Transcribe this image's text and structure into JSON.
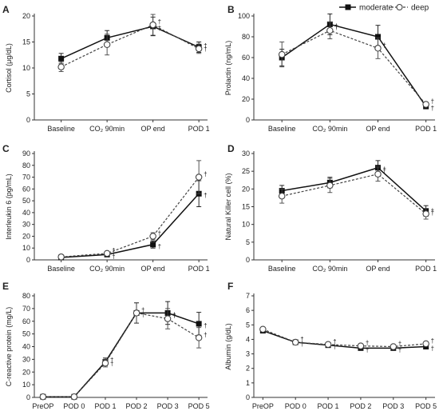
{
  "legend": {
    "moderate": "moderate",
    "deep": "deep",
    "position": "top-right"
  },
  "colors": {
    "moderate": "#111111",
    "deep": "#444444",
    "deep_fill": "#ffffff"
  },
  "chart_data": [
    {
      "id": "A",
      "panel_label": "A",
      "type": "line",
      "categories": [
        "Baseline",
        "CO₂ 90min",
        "OP end",
        "POD 1"
      ],
      "ylabel": "Cortisol (μg/dL)",
      "ylim": [
        0,
        20
      ],
      "yticks": [
        0,
        5,
        10,
        15,
        20
      ],
      "series": [
        {
          "name": "moderate",
          "values": [
            11.8,
            15.8,
            18.0,
            14.0
          ],
          "err": [
            1.0,
            1.4,
            1.8,
            1.0
          ],
          "dagger": [
            false,
            false,
            true,
            true
          ]
        },
        {
          "name": "deep",
          "values": [
            10.2,
            14.5,
            18.3,
            13.7
          ],
          "err": [
            0.9,
            2.0,
            2.0,
            0.9
          ],
          "dagger": [
            false,
            false,
            true,
            true
          ]
        }
      ]
    },
    {
      "id": "B",
      "panel_label": "B",
      "type": "line",
      "categories": [
        "Baseline",
        "CO₂ 90min",
        "OP end",
        "POD 1"
      ],
      "ylabel": "Prolactin (ng/mL)",
      "ylim": [
        0,
        100
      ],
      "yticks": [
        0,
        20,
        40,
        60,
        80,
        100
      ],
      "series": [
        {
          "name": "moderate",
          "values": [
            60,
            92,
            80,
            13
          ],
          "err": [
            8,
            10,
            11,
            2
          ],
          "dagger": [
            false,
            true,
            false,
            true
          ]
        },
        {
          "name": "deep",
          "values": [
            63,
            86,
            69,
            15
          ],
          "err": [
            12,
            8,
            10,
            2
          ],
          "dagger": [
            false,
            true,
            true,
            true
          ]
        }
      ]
    },
    {
      "id": "C",
      "panel_label": "C",
      "type": "line",
      "categories": [
        "Baseline",
        "CO₂ 90min",
        "OP end",
        "POD 1"
      ],
      "ylabel": "Interleukin 6 (pg/mL)",
      "ylim": [
        0,
        90
      ],
      "yticks": [
        0,
        10,
        20,
        30,
        40,
        50,
        60,
        70,
        80,
        90
      ],
      "series": [
        {
          "name": "moderate",
          "values": [
            2,
            4.5,
            13,
            56
          ],
          "err": [
            0.5,
            1,
            3,
            11
          ],
          "dagger": [
            false,
            true,
            true,
            true
          ]
        },
        {
          "name": "deep",
          "values": [
            2.5,
            5.5,
            20,
            70
          ],
          "err": [
            0.5,
            1,
            3,
            14
          ],
          "dagger": [
            false,
            true,
            true,
            true
          ]
        }
      ]
    },
    {
      "id": "D",
      "panel_label": "D",
      "type": "line",
      "categories": [
        "Baseline",
        "CO₂ 90min",
        "OP end",
        "POD 1"
      ],
      "ylabel": "Natural Killer cell (%)",
      "ylim": [
        0,
        30
      ],
      "yticks": [
        0,
        5,
        10,
        15,
        20,
        25,
        30
      ],
      "series": [
        {
          "name": "moderate",
          "values": [
            19.5,
            21.8,
            26,
            13.8
          ],
          "err": [
            1.5,
            1.5,
            2,
            1.5
          ],
          "dagger": [
            false,
            false,
            true,
            true
          ]
        },
        {
          "name": "deep",
          "values": [
            18,
            21,
            24.2,
            13
          ],
          "err": [
            2,
            2,
            2,
            1.5
          ],
          "dagger": [
            false,
            false,
            true,
            true
          ]
        }
      ]
    },
    {
      "id": "E",
      "panel_label": "E",
      "type": "line",
      "categories": [
        "PreOP",
        "POD 0",
        "POD 1",
        "POD 2",
        "POD 3",
        "POD 5"
      ],
      "ylabel": "C-reactive protein (mg/L)",
      "ylim": [
        0,
        80
      ],
      "yticks": [
        0,
        10,
        20,
        30,
        40,
        50,
        60,
        70,
        80
      ],
      "series": [
        {
          "name": "moderate",
          "values": [
            0.5,
            0.5,
            28,
            66.5,
            66.5,
            58
          ],
          "err": [
            0.5,
            0.5,
            3,
            8,
            9,
            9
          ],
          "dagger": [
            false,
            false,
            true,
            true,
            true,
            true
          ]
        },
        {
          "name": "deep",
          "values": [
            0.5,
            0.5,
            27,
            66.5,
            62,
            47
          ],
          "err": [
            0.5,
            0.5,
            3,
            8,
            8,
            8
          ],
          "dagger": [
            false,
            false,
            true,
            true,
            true,
            true
          ]
        }
      ]
    },
    {
      "id": "F",
      "panel_label": "F",
      "type": "line",
      "categories": [
        "PreOP",
        "POD 0",
        "POD 1",
        "POD 2",
        "POD 3",
        "POD 5"
      ],
      "ylabel": "Albumin (g/dL)",
      "ylim": [
        0,
        7
      ],
      "yticks": [
        0,
        1,
        2,
        3,
        4,
        5,
        6,
        7
      ],
      "series": [
        {
          "name": "moderate",
          "values": [
            4.6,
            3.8,
            3.6,
            3.4,
            3.4,
            3.5
          ],
          "err": [
            0.1,
            0.1,
            0.1,
            0.1,
            0.1,
            0.1
          ],
          "dagger": [
            false,
            true,
            true,
            true,
            true,
            true
          ]
        },
        {
          "name": "deep",
          "values": [
            4.7,
            3.8,
            3.65,
            3.55,
            3.5,
            3.7
          ],
          "err": [
            0.1,
            0.1,
            0.1,
            0.1,
            0.1,
            0.1
          ],
          "dagger": [
            false,
            true,
            true,
            true,
            true,
            true
          ]
        }
      ]
    }
  ]
}
